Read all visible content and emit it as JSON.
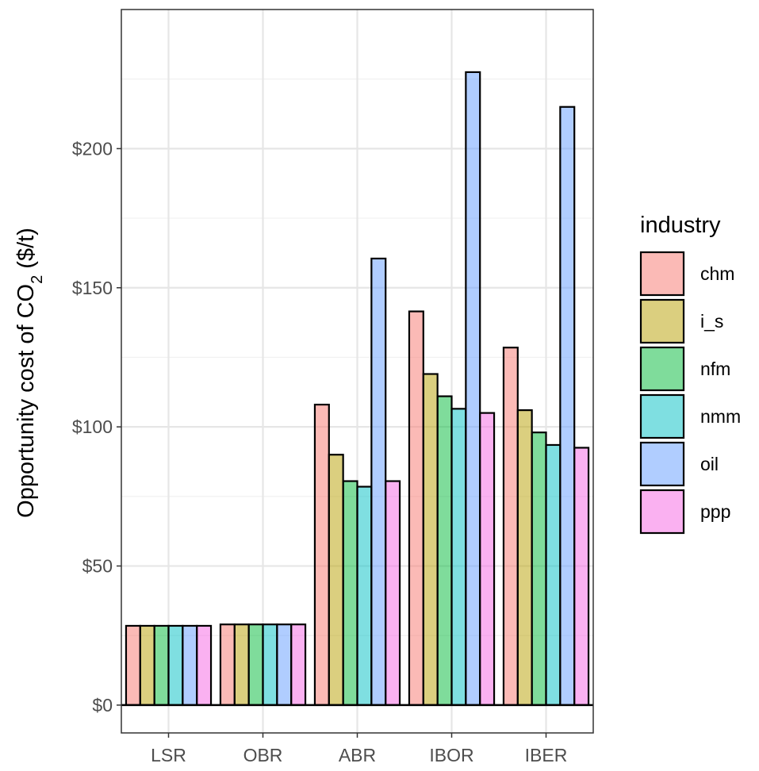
{
  "chart_data": {
    "type": "bar",
    "categories": [
      "LSR",
      "OBR",
      "ABR",
      "IBOR",
      "IBER"
    ],
    "ylabel_prefix": "Opportunity cost of  CO",
    "ylabel_sub": "2",
    "ylabel_suffix": "  ($/t)",
    "xlabel": "",
    "ylim": [
      -10,
      250
    ],
    "y_ticks": [
      0,
      50,
      100,
      150,
      200
    ],
    "y_tick_labels": [
      "$0",
      "$50",
      "$100",
      "$150",
      "$200"
    ],
    "grid": true,
    "legend": {
      "title": "industry",
      "position": "right"
    },
    "series": [
      {
        "name": "chm",
        "color": "#F8766D",
        "values": [
          28.5,
          29,
          108,
          141.5,
          128.5
        ]
      },
      {
        "name": "i_s",
        "color": "#B79F00",
        "values": [
          28.5,
          29,
          90,
          119,
          106
        ]
      },
      {
        "name": "nfm",
        "color": "#00BA38",
        "values": [
          28.5,
          29,
          80.5,
          111,
          98
        ]
      },
      {
        "name": "nmm",
        "color": "#00BFC4",
        "values": [
          28.5,
          29,
          78.5,
          106.5,
          93.5
        ]
      },
      {
        "name": "oil",
        "color": "#619CFF",
        "values": [
          28.5,
          29,
          160.5,
          227.5,
          215
        ]
      },
      {
        "name": "ppp",
        "color": "#F564E3",
        "values": [
          28.5,
          29,
          80.5,
          105,
          92.5
        ]
      }
    ]
  }
}
